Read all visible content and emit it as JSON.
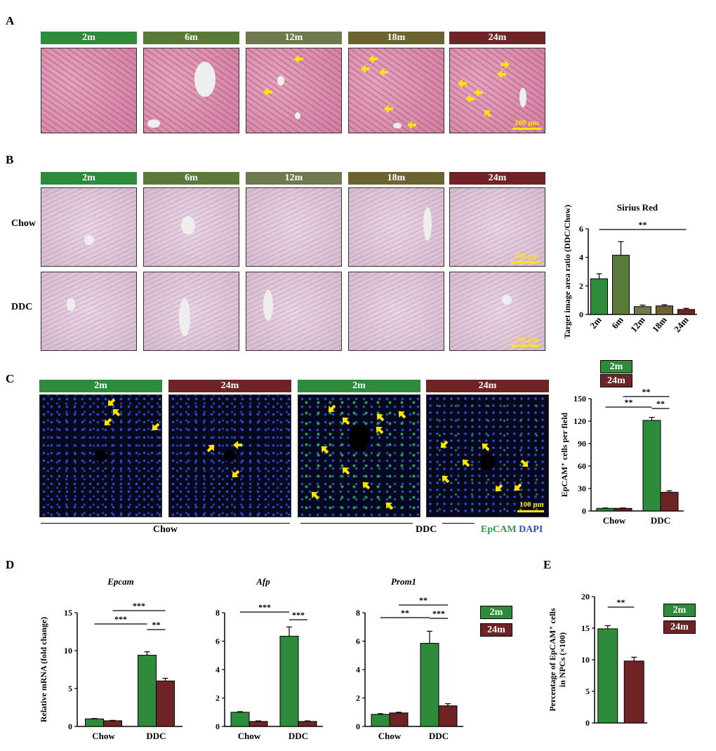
{
  "panels": {
    "A": "A",
    "B": "B",
    "C": "C",
    "D": "D",
    "E": "E"
  },
  "ages": [
    "2m",
    "6m",
    "12m",
    "18m",
    "24m"
  ],
  "age_colors": [
    "#2e8b3c",
    "#5a7a3a",
    "#6e7a4e",
    "#6b6330",
    "#6e2424"
  ],
  "panelA": {
    "scale_text": "200 μm"
  },
  "panelB": {
    "row_chow": "Chow",
    "row_ddc": "DDC",
    "scale_top": "200 μm",
    "scale_bottom": "200 μm"
  },
  "panelC": {
    "headers": [
      "2m",
      "24m",
      "2m",
      "24m"
    ],
    "scale_text": "100 μm",
    "group_chow": "Chow",
    "group_ddc": "DDC",
    "stain_epcam": "EpCAM",
    "stain_dapi": "DAPI",
    "epcam_color": "#2e9e3e",
    "dapi_color": "#2a4fc9"
  },
  "colors": {
    "green": "#2e8b3c",
    "maroon": "#6e2424"
  },
  "chart_data": [
    {
      "id": "sirius",
      "type": "bar",
      "title": "Sirius Red",
      "ylabel": "Target image area ratio (DDC/Chow)",
      "categories": [
        "2m",
        "6m",
        "12m",
        "18m",
        "24m"
      ],
      "values": [
        2.5,
        4.15,
        0.55,
        0.6,
        0.35
      ],
      "errors": [
        0.35,
        0.95,
        0.1,
        0.08,
        0.08
      ],
      "colors": [
        "#2e8b3c",
        "#5a7a3a",
        "#6e7a4e",
        "#6b6330",
        "#6e2424"
      ],
      "ylim": [
        0,
        6
      ],
      "yticks": [
        0,
        2,
        4,
        6
      ],
      "sig": [
        {
          "from": 0,
          "to": 4,
          "label": "**"
        }
      ]
    },
    {
      "id": "epcam_count",
      "type": "bar",
      "title": "",
      "ylabel": "EpCAM⁺ cells per field",
      "categories": [
        "Chow",
        "DDC"
      ],
      "series": [
        {
          "name": "2m",
          "values": [
            3.5,
            121
          ],
          "errors": [
            0.5,
            4
          ]
        },
        {
          "name": "24m",
          "values": [
            3.5,
            25
          ],
          "errors": [
            0.5,
            2
          ]
        }
      ],
      "ylim": [
        0,
        150
      ],
      "yticks": [
        0,
        30,
        60,
        90,
        120,
        150
      ],
      "sig": [
        {
          "from": "0a",
          "to": "1a",
          "label": "**"
        },
        {
          "from": "0b",
          "to": "1b",
          "label": "**"
        },
        {
          "from": "1a",
          "to": "1b",
          "label": "**"
        }
      ]
    },
    {
      "id": "epcam_mrna",
      "type": "bar",
      "title": "Epcam",
      "ylabel": "Relative mRNA (fold change)",
      "categories": [
        "Chow",
        "DDC"
      ],
      "series": [
        {
          "name": "2m",
          "values": [
            1.0,
            9.4
          ],
          "errors": [
            0.05,
            0.45
          ]
        },
        {
          "name": "24m",
          "values": [
            0.75,
            6.0
          ],
          "errors": [
            0.05,
            0.35
          ]
        }
      ],
      "ylim": [
        0,
        15
      ],
      "yticks": [
        0,
        5,
        10,
        15
      ],
      "sig": [
        {
          "from": "0a",
          "to": "1a",
          "label": "***"
        },
        {
          "from": "0b",
          "to": "1b",
          "label": "***"
        },
        {
          "from": "1a",
          "to": "1b",
          "label": "**"
        }
      ]
    },
    {
      "id": "afp_mrna",
      "type": "bar",
      "title": "Afp",
      "ylabel": "",
      "categories": [
        "Chow",
        "DDC"
      ],
      "series": [
        {
          "name": "2m",
          "values": [
            1.0,
            6.35
          ],
          "errors": [
            0.04,
            0.65
          ]
        },
        {
          "name": "24m",
          "values": [
            0.35,
            0.35
          ],
          "errors": [
            0.04,
            0.04
          ]
        }
      ],
      "ylim": [
        0,
        8
      ],
      "yticks": [
        0,
        2,
        4,
        6,
        8
      ],
      "sig": [
        {
          "from": "0a",
          "to": "1a",
          "label": "***"
        },
        {
          "from": "1a",
          "to": "1b",
          "label": "***"
        }
      ]
    },
    {
      "id": "prom1_mrna",
      "type": "bar",
      "title": "Prom1",
      "ylabel": "",
      "categories": [
        "Chow",
        "DDC"
      ],
      "series": [
        {
          "name": "2m",
          "values": [
            0.85,
            5.85
          ],
          "errors": [
            0.05,
            0.85
          ]
        },
        {
          "name": "24m",
          "values": [
            0.95,
            1.45
          ],
          "errors": [
            0.05,
            0.15
          ]
        }
      ],
      "ylim": [
        0,
        8
      ],
      "yticks": [
        0,
        2,
        4,
        6,
        8
      ],
      "sig": [
        {
          "from": "0a",
          "to": "1a",
          "label": "**"
        },
        {
          "from": "0b",
          "to": "1b",
          "label": "**"
        },
        {
          "from": "1a",
          "to": "1b",
          "label": "***"
        }
      ]
    },
    {
      "id": "npc_pct",
      "type": "bar",
      "title": "",
      "ylabel": "Percentage of EpCAM⁺ cells in NPCs (×100)",
      "categories": [
        "2m",
        "24m"
      ],
      "values": [
        14.9,
        9.8
      ],
      "errors": [
        0.5,
        0.6
      ],
      "ylim": [
        0,
        20
      ],
      "yticks": [
        0,
        5,
        10,
        15,
        20
      ],
      "sig": [
        {
          "from": 0,
          "to": 1,
          "label": "**"
        }
      ]
    }
  ],
  "legends": {
    "a": [
      "2m",
      "24m"
    ],
    "b": [
      "2m",
      "24m"
    ],
    "c": [
      "2m",
      "24m"
    ]
  }
}
